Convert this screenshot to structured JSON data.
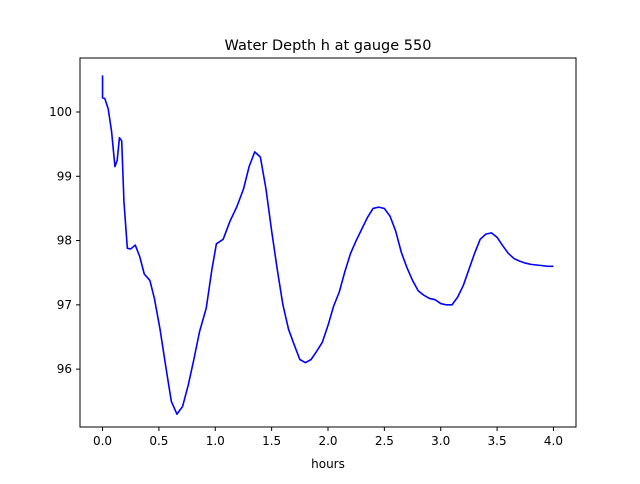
{
  "chart_data": {
    "type": "line",
    "title": "Water Depth h at gauge 550",
    "xlabel": "hours",
    "ylabel": "",
    "xlim": [
      -0.2,
      4.2
    ],
    "ylim": [
      95.1,
      100.84
    ],
    "xticks": [
      0.0,
      0.5,
      1.0,
      1.5,
      2.0,
      2.5,
      3.0,
      3.5,
      4.0
    ],
    "xtick_labels": [
      "0.0",
      "0.5",
      "1.0",
      "1.5",
      "2.0",
      "2.5",
      "3.0",
      "3.5",
      "4.0"
    ],
    "yticks": [
      96,
      97,
      98,
      99,
      100
    ],
    "ytick_labels": [
      "96",
      "97",
      "98",
      "99",
      "100"
    ],
    "grid": false,
    "legend": false,
    "series": [
      {
        "color": "#0000ff",
        "points": [
          [
            0.0,
            100.57
          ],
          [
            0.0,
            100.22
          ],
          [
            0.02,
            100.21
          ],
          [
            0.05,
            100.05
          ],
          [
            0.08,
            99.7
          ],
          [
            0.11,
            99.15
          ],
          [
            0.13,
            99.25
          ],
          [
            0.15,
            99.6
          ],
          [
            0.17,
            99.55
          ],
          [
            0.19,
            98.6
          ],
          [
            0.22,
            97.88
          ],
          [
            0.25,
            97.87
          ],
          [
            0.29,
            97.93
          ],
          [
            0.33,
            97.75
          ],
          [
            0.37,
            97.48
          ],
          [
            0.42,
            97.38
          ],
          [
            0.46,
            97.1
          ],
          [
            0.51,
            96.62
          ],
          [
            0.56,
            96.05
          ],
          [
            0.61,
            95.5
          ],
          [
            0.66,
            95.3
          ],
          [
            0.71,
            95.42
          ],
          [
            0.76,
            95.75
          ],
          [
            0.81,
            96.15
          ],
          [
            0.86,
            96.58
          ],
          [
            0.92,
            96.95
          ],
          [
            0.97,
            97.55
          ],
          [
            1.01,
            97.95
          ],
          [
            1.07,
            98.02
          ],
          [
            1.13,
            98.3
          ],
          [
            1.19,
            98.52
          ],
          [
            1.25,
            98.8
          ],
          [
            1.3,
            99.15
          ],
          [
            1.35,
            99.38
          ],
          [
            1.4,
            99.3
          ],
          [
            1.45,
            98.8
          ],
          [
            1.5,
            98.15
          ],
          [
            1.55,
            97.55
          ],
          [
            1.6,
            97.0
          ],
          [
            1.65,
            96.62
          ],
          [
            1.7,
            96.38
          ],
          [
            1.75,
            96.15
          ],
          [
            1.8,
            96.1
          ],
          [
            1.85,
            96.15
          ],
          [
            1.9,
            96.28
          ],
          [
            1.95,
            96.42
          ],
          [
            2.0,
            96.68
          ],
          [
            2.05,
            96.98
          ],
          [
            2.1,
            97.2
          ],
          [
            2.15,
            97.52
          ],
          [
            2.2,
            97.8
          ],
          [
            2.25,
            98.0
          ],
          [
            2.3,
            98.18
          ],
          [
            2.35,
            98.36
          ],
          [
            2.4,
            98.5
          ],
          [
            2.45,
            98.52
          ],
          [
            2.5,
            98.5
          ],
          [
            2.55,
            98.38
          ],
          [
            2.6,
            98.15
          ],
          [
            2.65,
            97.82
          ],
          [
            2.7,
            97.58
          ],
          [
            2.75,
            97.38
          ],
          [
            2.8,
            97.22
          ],
          [
            2.85,
            97.15
          ],
          [
            2.9,
            97.1
          ],
          [
            2.95,
            97.08
          ],
          [
            3.0,
            97.02
          ],
          [
            3.05,
            97.0
          ],
          [
            3.1,
            97.0
          ],
          [
            3.15,
            97.12
          ],
          [
            3.2,
            97.3
          ],
          [
            3.25,
            97.55
          ],
          [
            3.3,
            97.8
          ],
          [
            3.35,
            98.02
          ],
          [
            3.4,
            98.1
          ],
          [
            3.45,
            98.12
          ],
          [
            3.5,
            98.05
          ],
          [
            3.55,
            97.92
          ],
          [
            3.6,
            97.8
          ],
          [
            3.65,
            97.72
          ],
          [
            3.7,
            97.68
          ],
          [
            3.75,
            97.65
          ],
          [
            3.8,
            97.63
          ],
          [
            3.85,
            97.62
          ],
          [
            3.9,
            97.61
          ],
          [
            3.95,
            97.6
          ],
          [
            4.0,
            97.6
          ]
        ]
      }
    ]
  }
}
